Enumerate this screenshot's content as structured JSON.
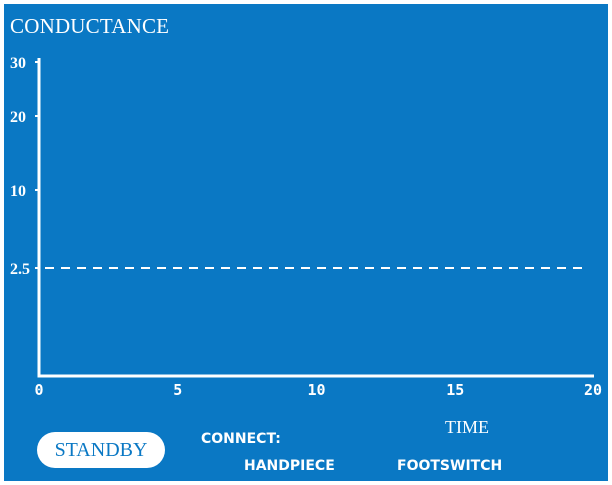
{
  "screen": {
    "title": "CONDUCTANCE",
    "time_label": "TIME",
    "standby_label": "STANDBY",
    "connect_label": "CONNECT:",
    "handpiece_label": "HANDPIECE",
    "footswitch_label": "FOOTSWITCH"
  },
  "colors": {
    "background": "#0a78c4",
    "foreground": "#ffffff"
  },
  "chart_data": {
    "type": "line",
    "title": "CONDUCTANCE",
    "xlabel": "TIME",
    "ylabel": "",
    "xlim": [
      0,
      20
    ],
    "x_ticks": [
      0,
      5,
      10,
      15,
      20
    ],
    "y_ticks": [
      30,
      20,
      10,
      2.5
    ],
    "y_scale": "nonlinear",
    "threshold_line": {
      "y": 2.5,
      "style": "dashed"
    },
    "series": [],
    "grid": false
  }
}
